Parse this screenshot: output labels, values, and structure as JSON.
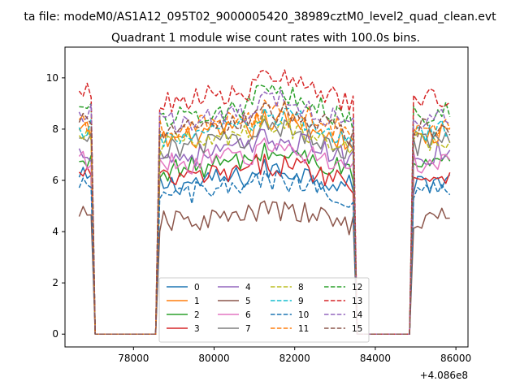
{
  "chart_data": {
    "type": "line",
    "suptitle": "ta file: modeM0/AS1A12_095T02_9000005420_38989cztM0_level2_quad_clean.evt",
    "title": "Quadrant 1 module wise count rates with 100.0s bins.",
    "xlabel": "",
    "ylabel": "",
    "x_offset_label": "+4.086e8",
    "xlim": [
      76300,
      86300
    ],
    "ylim": [
      -0.5,
      11.2
    ],
    "x_ticks": [
      78000,
      80000,
      82000,
      84000,
      86000
    ],
    "x_tick_labels": [
      "78000",
      "80000",
      "82000",
      "84000",
      "86000"
    ],
    "y_ticks": [
      0,
      2,
      4,
      6,
      8,
      10
    ],
    "y_tick_labels": [
      "0",
      "2",
      "4",
      "6",
      "8",
      "10"
    ],
    "grid": false,
    "legend_position": "lower-center",
    "legend_columns": 4,
    "segments": [
      {
        "start": 76650,
        "end": 76950,
        "level_scale": 1.0
      },
      {
        "start": 78650,
        "end": 83450,
        "level_scale": 1.0
      },
      {
        "start": 84950,
        "end": 85850,
        "level_scale": 1.0
      }
    ],
    "series": [
      {
        "name": "0",
        "color": "#1f77b4",
        "dash": "solid",
        "level": 6.0
      },
      {
        "name": "1",
        "color": "#ff7f0e",
        "dash": "solid",
        "level": 7.8
      },
      {
        "name": "2",
        "color": "#2ca02c",
        "dash": "solid",
        "level": 6.6
      },
      {
        "name": "3",
        "color": "#d62728",
        "dash": "solid",
        "level": 6.2
      },
      {
        "name": "4",
        "color": "#9467bd",
        "dash": "solid",
        "level": 7.1
      },
      {
        "name": "5",
        "color": "#8c564b",
        "dash": "solid",
        "level": 4.5
      },
      {
        "name": "6",
        "color": "#e377c2",
        "dash": "solid",
        "level": 6.8
      },
      {
        "name": "7",
        "color": "#7f7f7f",
        "dash": "solid",
        "level": 7.5
      },
      {
        "name": "8",
        "color": "#bcbd22",
        "dash": "dashed",
        "level": 7.6
      },
      {
        "name": "9",
        "color": "#17becf",
        "dash": "dashed",
        "level": 7.9
      },
      {
        "name": "10",
        "color": "#1f77b4",
        "dash": "dashed",
        "level": 5.6
      },
      {
        "name": "11",
        "color": "#ff7f0e",
        "dash": "dashed",
        "level": 8.2
      },
      {
        "name": "12",
        "color": "#2ca02c",
        "dash": "dashed",
        "level": 8.7
      },
      {
        "name": "13",
        "color": "#d62728",
        "dash": "dashed",
        "level": 9.3
      },
      {
        "name": "14",
        "color": "#9467bd",
        "dash": "dashed",
        "level": 8.5
      },
      {
        "name": "15",
        "color": "#8c564b",
        "dash": "dashed",
        "level": 8.1
      }
    ]
  }
}
